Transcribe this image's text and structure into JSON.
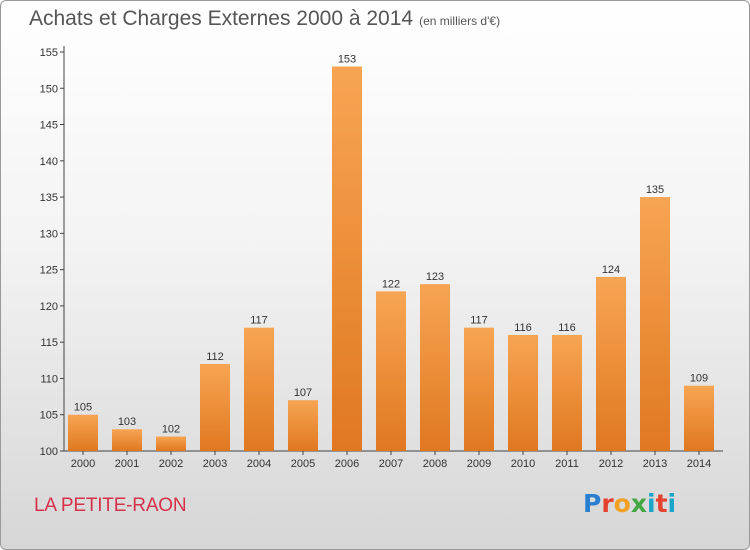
{
  "header": {
    "title": "Achats et Charges Externes 2000 à 2014",
    "subtitle": "(en milliers d'€)"
  },
  "footer": {
    "commune": "LA PETITE-RAON",
    "logo_text": "Proxiti"
  },
  "colors": {
    "bar_light": "#f7a553",
    "bar_dark": "#e07820",
    "commune_text": "#d6314a"
  },
  "chart_data": {
    "type": "bar",
    "title": "Achats et Charges Externes 2000 à 2014",
    "subtitle": "(en milliers d'€)",
    "xlabel": "",
    "ylabel": "",
    "categories": [
      "2000",
      "2001",
      "2002",
      "2003",
      "2004",
      "2005",
      "2006",
      "2007",
      "2008",
      "2009",
      "2010",
      "2011",
      "2012",
      "2013",
      "2014"
    ],
    "values": [
      105,
      103,
      102,
      112,
      117,
      107,
      153,
      122,
      123,
      117,
      116,
      116,
      124,
      135,
      109
    ],
    "ylim": [
      100,
      155
    ],
    "yticks": [
      100,
      105,
      110,
      115,
      120,
      125,
      130,
      135,
      140,
      145,
      150,
      155
    ],
    "grid": false,
    "legend": "none"
  }
}
